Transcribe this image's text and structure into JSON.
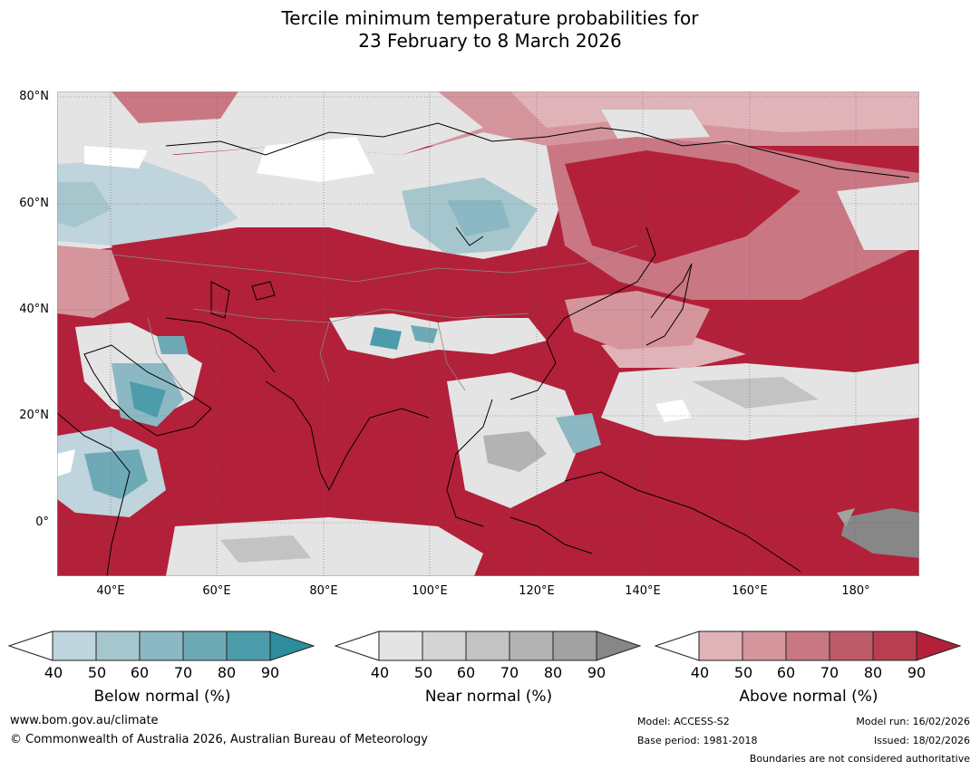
{
  "title_line1": "Tercile minimum temperature probabilities for",
  "title_line2": "23 February to 8 March 2026",
  "map": {
    "lat_labels": [
      "80°N",
      "60°N",
      "40°N",
      "20°N",
      "0°"
    ],
    "lon_labels": [
      "40°E",
      "60°E",
      "80°E",
      "100°E",
      "120°E",
      "140°E",
      "160°E",
      "180°"
    ],
    "extent": {
      "lon_min": 30,
      "lon_max": 192,
      "lat_min": -10,
      "lat_max": 81
    }
  },
  "legends": [
    {
      "title": "Below normal (%)",
      "ticks": [
        "40",
        "50",
        "60",
        "70",
        "80",
        "90"
      ],
      "colors": [
        "#bfd4dc",
        "#a6c6cd",
        "#8bb8c2",
        "#6eaab6",
        "#4d9cab",
        "#2d8d9f"
      ]
    },
    {
      "title": "Near normal (%)",
      "ticks": [
        "40",
        "50",
        "60",
        "70",
        "80",
        "90"
      ],
      "colors": [
        "#e4e4e4",
        "#d4d4d4",
        "#c3c3c3",
        "#b3b3b3",
        "#a2a2a2",
        "#878787"
      ]
    },
    {
      "title": "Above normal (%)",
      "ticks": [
        "40",
        "50",
        "60",
        "70",
        "80",
        "90"
      ],
      "colors": [
        "#e0b3b9",
        "#d5959d",
        "#c97783",
        "#be5b69",
        "#b73f51",
        "#b3203a"
      ]
    }
  ],
  "footer": {
    "website": "www.bom.gov.au/climate",
    "copyright": "© Commonwealth of Australia 2026, Australian Bureau of Meteorology",
    "model": "Model: ACCESS-S2",
    "base_period": "Base period: 1981-2018",
    "model_run": "Model run: 16/02/2026",
    "issued": "Issued: 18/02/2026",
    "disclaimer": "Boundaries are not considered authoritative"
  }
}
